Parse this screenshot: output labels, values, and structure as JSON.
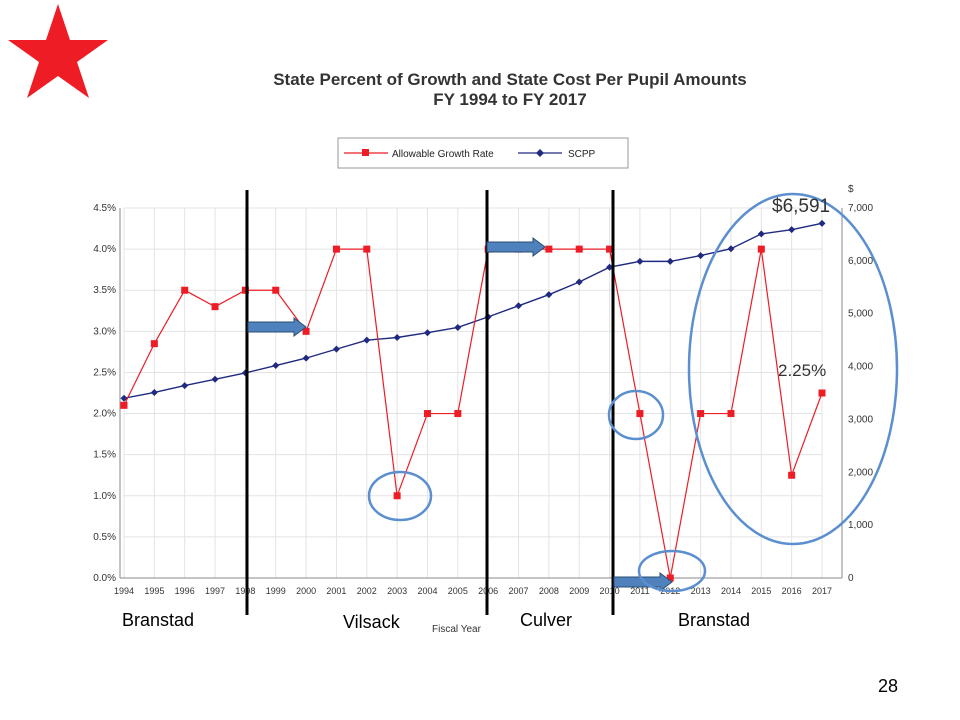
{
  "slide": {
    "page_number": "28",
    "eras": [
      "Branstad",
      "Vilsack",
      "Culver",
      "Branstad"
    ],
    "callouts": [
      "$6,591",
      "2.25%"
    ],
    "colors": {
      "star": "#ee1c25",
      "highlight": "#5b8fd0",
      "arrow": "#4f81bd",
      "era_line": "#000000"
    },
    "icons": [
      "star-icon",
      "arrow-icon"
    ]
  },
  "chart_data": {
    "type": "line",
    "title": "State Percent of Growth and State Cost Per Pupil Amounts",
    "subtitle": "FY 1994 to FY 2017",
    "xlabel": "Fiscal Year",
    "categories": [
      "1994",
      "1995",
      "1996",
      "1997",
      "1998",
      "1999",
      "2000",
      "2001",
      "2002",
      "2003",
      "2004",
      "2005",
      "2006",
      "2007",
      "2008",
      "2009",
      "2010",
      "2011",
      "2012",
      "2013",
      "2014",
      "2015",
      "2016",
      "2017"
    ],
    "series": [
      {
        "name": "Allowable Growth Rate",
        "axis": "left",
        "color": "#ee1c25",
        "values": [
          2.1,
          2.85,
          3.5,
          3.3,
          3.5,
          3.5,
          3.0,
          4.0,
          4.0,
          1.0,
          2.0,
          2.0,
          4.0,
          4.0,
          4.0,
          4.0,
          4.0,
          2.0,
          0.0,
          2.0,
          2.0,
          4.0,
          1.25,
          2.25
        ]
      },
      {
        "name": "SCPP",
        "axis": "right",
        "color": "#1f2a80",
        "values": [
          3400,
          3510,
          3640,
          3760,
          3880,
          4020,
          4160,
          4330,
          4500,
          4550,
          4640,
          4740,
          4940,
          5150,
          5360,
          5600,
          5880,
          5990,
          5990,
          6100,
          6230,
          6510,
          6590,
          6710
        ]
      }
    ],
    "y_left": {
      "ylim": [
        0,
        4.5
      ],
      "tick_labels": [
        "0.0%",
        "0.5%",
        "1.0%",
        "1.5%",
        "2.0%",
        "2.5%",
        "3.0%",
        "3.5%",
        "4.0%",
        "4.5%"
      ]
    },
    "y_right": {
      "ylim": [
        0,
        7000
      ],
      "unit_label": "$",
      "tick_labels": [
        "0",
        "1,000",
        "2,000",
        "3,000",
        "4,000",
        "5,000",
        "6,000",
        "7,000"
      ]
    },
    "grid": true,
    "legend": "top-center"
  }
}
